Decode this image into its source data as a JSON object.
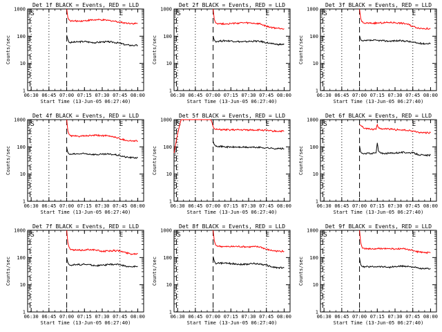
{
  "figure": {
    "xlabel": "Start Time (13-Jun-05 06:27:40)",
    "ylabel": "Counts/sec",
    "x_tick_labels": [
      "06:30",
      "06:45",
      "07:00",
      "07:15",
      "07:30",
      "07:45",
      "08:00"
    ],
    "y_tick_labels": [
      "1",
      "10",
      "100",
      "1000"
    ],
    "series_names": [
      "Events",
      "LLD"
    ],
    "colors": {
      "events": "#000000",
      "lld": "#ff0000",
      "axes": "#000000",
      "background": "#ffffff"
    },
    "marker_S": "S",
    "marker_E": "E"
  },
  "chart_data": [
    {
      "type": "line",
      "title": "Det 1f BLACK = Events, RED = LLD",
      "xlabel": "Start Time (13-Jun-05 06:27:40)",
      "ylabel": "Counts/sec",
      "yscale": "log",
      "ylim": [
        1,
        1000
      ],
      "xlim_min": [
        -3,
        95
      ],
      "x_ticks_min": [
        0,
        15,
        30,
        45,
        60,
        75,
        90
      ],
      "dotted_lines_min": [
        0,
        15,
        75
      ],
      "dashed_lines_min": [
        -1,
        30
      ],
      "series": [
        {
          "name": "Events",
          "color": "#000000",
          "x": [
            30,
            31,
            32,
            33,
            35,
            40,
            45,
            50,
            55,
            60,
            65,
            70,
            75,
            80,
            85,
            90
          ],
          "values": [
            110,
            75,
            60,
            58,
            60,
            62,
            64,
            60,
            58,
            62,
            62,
            60,
            55,
            48,
            46,
            46
          ]
        },
        {
          "name": "LLD",
          "color": "#ff0000",
          "x": [
            30,
            31,
            32,
            33,
            35,
            40,
            45,
            50,
            55,
            60,
            65,
            70,
            75,
            80,
            85,
            90
          ],
          "values": [
            1000,
            480,
            400,
            370,
            360,
            360,
            370,
            390,
            400,
            395,
            380,
            360,
            330,
            305,
            295,
            290
          ]
        }
      ]
    },
    {
      "type": "line",
      "title": "Det 2f BLACK = Events, RED = LLD",
      "xlabel": "Start Time (13-Jun-05 06:27:40)",
      "ylabel": "Counts/sec",
      "yscale": "log",
      "ylim": [
        1,
        1000
      ],
      "xlim_min": [
        -3,
        95
      ],
      "x_ticks_min": [
        0,
        15,
        30,
        45,
        60,
        75,
        90
      ],
      "dotted_lines_min": [
        0,
        15,
        75
      ],
      "dashed_lines_min": [
        -1,
        30
      ],
      "series": [
        {
          "name": "Events",
          "color": "#000000",
          "x": [
            30,
            31,
            32,
            33,
            35,
            40,
            45,
            50,
            55,
            60,
            65,
            70,
            75,
            80,
            85,
            90
          ],
          "values": [
            100,
            72,
            65,
            64,
            66,
            68,
            67,
            64,
            62,
            64,
            66,
            64,
            58,
            52,
            50,
            50
          ]
        },
        {
          "name": "LLD",
          "color": "#ff0000",
          "x": [
            30,
            31,
            32,
            33,
            35,
            40,
            45,
            50,
            55,
            60,
            65,
            70,
            75,
            80,
            85,
            90
          ],
          "values": [
            1000,
            420,
            320,
            300,
            290,
            285,
            290,
            300,
            310,
            305,
            295,
            280,
            230,
            205,
            195,
            190
          ]
        }
      ]
    },
    {
      "type": "line",
      "title": "Det 3f BLACK = Events, RED = LLD",
      "xlabel": "Start Time (13-Jun-05 06:27:40)",
      "ylabel": "Counts/sec",
      "yscale": "log",
      "ylim": [
        1,
        1000
      ],
      "xlim_min": [
        -3,
        95
      ],
      "x_ticks_min": [
        0,
        15,
        30,
        45,
        60,
        75,
        90
      ],
      "dotted_lines_min": [
        0,
        15,
        75
      ],
      "dashed_lines_min": [
        -1,
        30
      ],
      "series": [
        {
          "name": "Events",
          "color": "#000000",
          "x": [
            30,
            31,
            32,
            33,
            35,
            40,
            45,
            50,
            55,
            60,
            65,
            70,
            75,
            80,
            85,
            90
          ],
          "values": [
            105,
            75,
            68,
            66,
            68,
            70,
            70,
            68,
            66,
            68,
            68,
            66,
            60,
            55,
            53,
            55
          ]
        },
        {
          "name": "LLD",
          "color": "#ff0000",
          "x": [
            30,
            31,
            32,
            33,
            35,
            40,
            45,
            50,
            55,
            60,
            65,
            70,
            75,
            80,
            85,
            90
          ],
          "values": [
            1000,
            450,
            340,
            310,
            300,
            300,
            305,
            310,
            320,
            315,
            300,
            285,
            230,
            200,
            190,
            190
          ]
        }
      ]
    },
    {
      "type": "line",
      "title": "Det 4f BLACK = Events, RED = LLD",
      "xlabel": "Start Time (13-Jun-05 06:27:40)",
      "ylabel": "Counts/sec",
      "yscale": "log",
      "ylim": [
        1,
        1000
      ],
      "xlim_min": [
        -3,
        95
      ],
      "x_ticks_min": [
        0,
        15,
        30,
        45,
        60,
        75,
        90
      ],
      "dotted_lines_min": [
        0,
        15,
        75
      ],
      "dashed_lines_min": [
        -1,
        30
      ],
      "series": [
        {
          "name": "Events",
          "color": "#000000",
          "x": [
            30,
            31,
            32,
            33,
            35,
            40,
            45,
            50,
            55,
            60,
            65,
            70,
            75,
            80,
            85,
            90
          ],
          "values": [
            95,
            62,
            55,
            52,
            54,
            55,
            56,
            54,
            52,
            53,
            54,
            52,
            48,
            42,
            40,
            40
          ]
        },
        {
          "name": "LLD",
          "color": "#ff0000",
          "x": [
            30,
            31,
            32,
            33,
            35,
            40,
            45,
            50,
            55,
            60,
            65,
            70,
            75,
            80,
            85,
            90
          ],
          "values": [
            1000,
            380,
            290,
            260,
            250,
            245,
            250,
            260,
            265,
            260,
            250,
            235,
            200,
            175,
            165,
            165
          ]
        }
      ]
    },
    {
      "type": "line",
      "title": "Det 5f BLACK = Events, RED = LLD",
      "xlabel": "Start Time (13-Jun-05 06:27:40)",
      "ylabel": "Counts/sec",
      "yscale": "log",
      "ylim": [
        1,
        1000
      ],
      "xlim_min": [
        -3,
        95
      ],
      "x_ticks_min": [
        0,
        15,
        30,
        45,
        60,
        75,
        90
      ],
      "dotted_lines_min": [
        0,
        15,
        75
      ],
      "dashed_lines_min": [
        -1,
        30
      ],
      "series": [
        {
          "name": "Events",
          "color": "#000000",
          "x": [
            30,
            31,
            32,
            33,
            35,
            40,
            45,
            50,
            55,
            60,
            65,
            70,
            75,
            80,
            85,
            90
          ],
          "values": [
            160,
            120,
            112,
            108,
            106,
            100,
            98,
            98,
            97,
            96,
            96,
            95,
            92,
            88,
            86,
            86
          ]
        },
        {
          "name": "LLD",
          "color": "#ff0000",
          "x": [
            -3,
            0,
            2,
            3,
            4,
            5,
            25,
            28,
            29,
            30,
            31,
            32,
            35,
            40,
            50,
            60,
            70,
            75,
            80,
            90
          ],
          "values": [
            60,
            300,
            700,
            1000,
            1000,
            1000,
            1000,
            1000,
            800,
            550,
            460,
            440,
            430,
            425,
            420,
            420,
            418,
            400,
            380,
            375
          ]
        }
      ]
    },
    {
      "type": "line",
      "title": "Det 6f BLACK = Events, RED = LLD",
      "xlabel": "Start Time (13-Jun-05 06:27:40)",
      "ylabel": "Counts/sec",
      "yscale": "log",
      "ylim": [
        1,
        1000
      ],
      "xlim_min": [
        -3,
        95
      ],
      "x_ticks_min": [
        0,
        15,
        30,
        45,
        60,
        75,
        90
      ],
      "dotted_lines_min": [
        0,
        15,
        75
      ],
      "dashed_lines_min": [
        -1,
        30
      ],
      "series": [
        {
          "name": "Events",
          "color": "#000000",
          "x": [
            30,
            31,
            32,
            33,
            35,
            40,
            44,
            45,
            46,
            48,
            50,
            55,
            60,
            65,
            70,
            75,
            80,
            85,
            90
          ],
          "values": [
            110,
            65,
            58,
            56,
            57,
            58,
            60,
            140,
            70,
            58,
            58,
            58,
            60,
            62,
            62,
            60,
            52,
            48,
            50
          ]
        },
        {
          "name": "LLD",
          "color": "#ff0000",
          "x": [
            30,
            31,
            32,
            33,
            35,
            40,
            44,
            45,
            46,
            48,
            50,
            55,
            60,
            65,
            70,
            75,
            80,
            85,
            90
          ],
          "values": [
            650,
            620,
            560,
            520,
            480,
            450,
            440,
            660,
            520,
            470,
            460,
            450,
            430,
            420,
            400,
            380,
            340,
            330,
            330
          ]
        }
      ]
    },
    {
      "type": "line",
      "title": "Det 7f BLACK = Events, RED = LLD",
      "xlabel": "Start Time (13-Jun-05 06:27:40)",
      "ylabel": "Counts/sec",
      "yscale": "log",
      "ylim": [
        1,
        1000
      ],
      "xlim_min": [
        -3,
        95
      ],
      "x_ticks_min": [
        0,
        15,
        30,
        45,
        60,
        75,
        90
      ],
      "dotted_lines_min": [
        0,
        15,
        75
      ],
      "dashed_lines_min": [
        -1,
        30
      ],
      "series": [
        {
          "name": "Events",
          "color": "#000000",
          "x": [
            30,
            31,
            32,
            33,
            35,
            40,
            45,
            50,
            55,
            60,
            65,
            70,
            75,
            80,
            85,
            90
          ],
          "values": [
            100,
            65,
            55,
            52,
            54,
            55,
            56,
            54,
            50,
            52,
            55,
            56,
            55,
            48,
            45,
            48
          ]
        },
        {
          "name": "LLD",
          "color": "#ff0000",
          "x": [
            30,
            31,
            32,
            33,
            35,
            40,
            45,
            50,
            55,
            60,
            65,
            70,
            75,
            80,
            85,
            90
          ],
          "values": [
            1000,
            350,
            240,
            200,
            190,
            185,
            190,
            200,
            185,
            170,
            175,
            180,
            175,
            150,
            135,
            140
          ]
        }
      ]
    },
    {
      "type": "line",
      "title": "Det 8f BLACK = Events, RED = LLD",
      "xlabel": "Start Time (13-Jun-05 06:27:40)",
      "ylabel": "Counts/sec",
      "yscale": "log",
      "ylim": [
        1,
        1000
      ],
      "xlim_min": [
        -3,
        95
      ],
      "x_ticks_min": [
        0,
        15,
        30,
        45,
        60,
        75,
        90
      ],
      "dotted_lines_min": [
        0,
        15,
        75
      ],
      "dashed_lines_min": [
        -1,
        30
      ],
      "series": [
        {
          "name": "Events",
          "color": "#000000",
          "x": [
            30,
            31,
            32,
            33,
            35,
            40,
            45,
            50,
            55,
            60,
            65,
            70,
            75,
            80,
            85,
            90
          ],
          "values": [
            110,
            75,
            62,
            60,
            62,
            62,
            60,
            58,
            56,
            58,
            60,
            58,
            52,
            45,
            42,
            42
          ]
        },
        {
          "name": "LLD",
          "color": "#ff0000",
          "x": [
            30,
            31,
            32,
            33,
            35,
            40,
            45,
            50,
            55,
            60,
            65,
            70,
            75,
            80,
            85,
            90
          ],
          "values": [
            1000,
            420,
            300,
            270,
            260,
            250,
            250,
            255,
            250,
            245,
            250,
            245,
            200,
            180,
            170,
            170
          ]
        }
      ]
    },
    {
      "type": "line",
      "title": "Det 9f BLACK = Events, RED = LLD",
      "xlabel": "Start Time (13-Jun-05 06:27:40)",
      "ylabel": "Counts/sec",
      "yscale": "log",
      "ylim": [
        1,
        1000
      ],
      "xlim_min": [
        -3,
        95
      ],
      "x_ticks_min": [
        0,
        15,
        30,
        45,
        60,
        75,
        90
      ],
      "dotted_lines_min": [
        0,
        15,
        75
      ],
      "dashed_lines_min": [
        -1,
        30
      ],
      "series": [
        {
          "name": "Events",
          "color": "#000000",
          "x": [
            30,
            31,
            32,
            33,
            35,
            40,
            45,
            50,
            55,
            60,
            65,
            70,
            75,
            80,
            85,
            90
          ],
          "values": [
            95,
            55,
            47,
            45,
            46,
            46,
            47,
            46,
            44,
            46,
            48,
            48,
            45,
            40,
            38,
            40
          ]
        },
        {
          "name": "LLD",
          "color": "#ff0000",
          "x": [
            30,
            31,
            32,
            33,
            35,
            40,
            45,
            50,
            55,
            60,
            65,
            70,
            75,
            80,
            85,
            90
          ],
          "values": [
            1000,
            350,
            250,
            220,
            210,
            205,
            210,
            215,
            210,
            205,
            210,
            205,
            180,
            160,
            150,
            150
          ]
        }
      ]
    }
  ]
}
